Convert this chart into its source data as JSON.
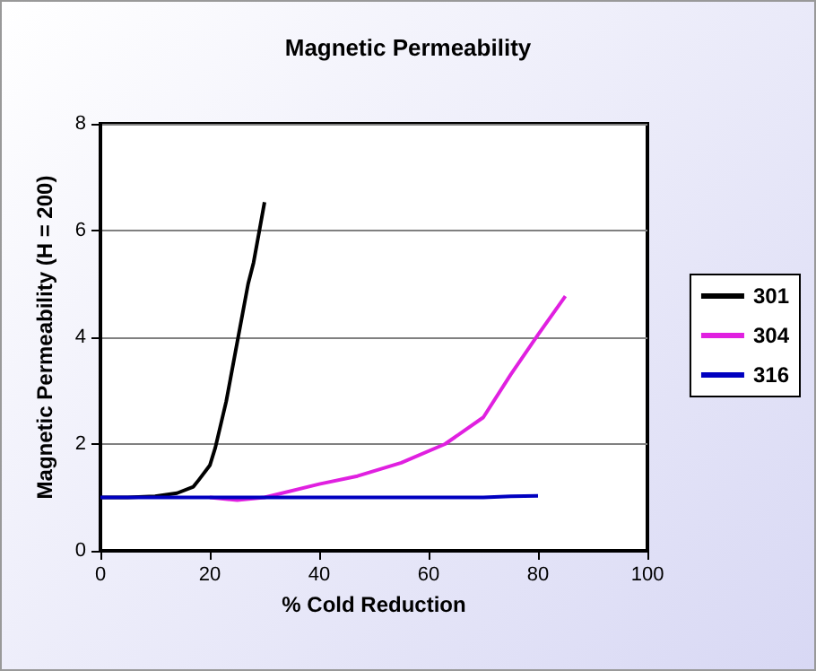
{
  "chart_data": {
    "type": "line",
    "title": "Magnetic Permeability",
    "xlabel": "% Cold Reduction",
    "ylabel": "Magnetic Permeability (H = 200)",
    "xlim": [
      0,
      100
    ],
    "xticks": [
      0,
      20,
      40,
      60,
      80,
      100
    ],
    "ylim": [
      0,
      8
    ],
    "yticks": [
      0,
      2,
      4,
      6,
      8
    ],
    "grid": "y",
    "legend": "right",
    "marker": "none",
    "line_style": "solid",
    "series": [
      {
        "name": "301",
        "color": "#000000",
        "x": [
          0,
          5,
          10,
          14,
          17,
          18,
          20,
          21,
          23,
          25,
          27,
          28,
          30
        ],
        "values": [
          1.0,
          1.0,
          1.02,
          1.08,
          1.2,
          1.33,
          1.6,
          1.93,
          2.8,
          3.9,
          5.0,
          5.4,
          6.53
        ]
      },
      {
        "name": "304",
        "color": "#e020e0",
        "x": [
          20,
          25,
          30,
          40,
          47,
          55,
          63,
          70,
          75,
          80,
          85
        ],
        "values": [
          1.0,
          0.95,
          1.0,
          1.25,
          1.4,
          1.65,
          2.0,
          2.5,
          3.3,
          4.05,
          4.77
        ]
      },
      {
        "name": "316",
        "color": "#0000c0",
        "x": [
          0,
          20,
          40,
          60,
          70,
          75,
          80
        ],
        "values": [
          1.0,
          1.0,
          1.0,
          1.0,
          1.0,
          1.02,
          1.03
        ]
      }
    ]
  }
}
